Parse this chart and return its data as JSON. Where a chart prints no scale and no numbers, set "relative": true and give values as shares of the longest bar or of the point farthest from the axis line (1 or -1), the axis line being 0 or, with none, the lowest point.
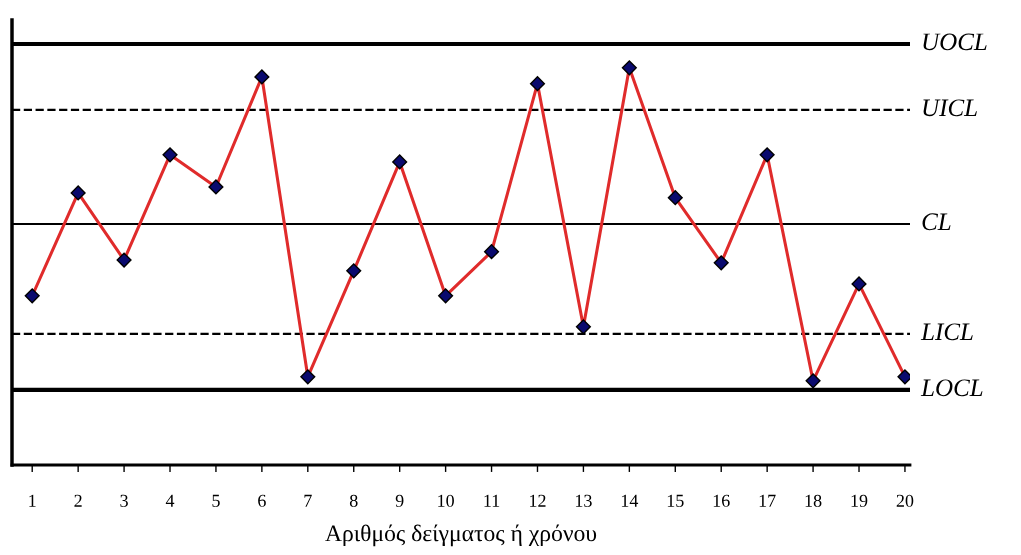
{
  "chart_data": {
    "type": "line",
    "relative": true,
    "xlabel": "Αριθμός δείγματος ή χρόνου",
    "categories": [
      "1",
      "2",
      "3",
      "4",
      "5",
      "6",
      "7",
      "8",
      "9",
      "10",
      "11",
      "12",
      "13",
      "14",
      "15",
      "16",
      "17",
      "18",
      "19",
      "20"
    ],
    "series": [
      {
        "color": "#e02b2b",
        "values": [
          0.426,
          0.685,
          0.516,
          0.781,
          0.7,
          0.977,
          0.222,
          0.489,
          0.763,
          0.426,
          0.537,
          0.96,
          0.348,
          1,
          0.673,
          0.509,
          0.781,
          0.212,
          0.456,
          0.222
        ]
      }
    ],
    "marker": "diamond",
    "line_style": "solid",
    "grid": false,
    "legend": false,
    "ref_lines": [
      {
        "axis": "y",
        "value": 1.06,
        "label": "UOCL",
        "color": "#000000",
        "line_style": "solid"
      },
      {
        "axis": "y",
        "value": 0.894,
        "label": "UICL",
        "color": "#000000",
        "line_style": "dashed"
      },
      {
        "axis": "y",
        "value": 0.607,
        "label": "CL",
        "color": "#000000",
        "line_style": "solid"
      },
      {
        "axis": "y",
        "value": 0.33,
        "label": "LICL",
        "color": "#000000",
        "line_style": "dashed"
      },
      {
        "axis": "y",
        "value": 0.189,
        "label": "LOCL",
        "color": "#000000",
        "line_style": "solid"
      }
    ]
  }
}
